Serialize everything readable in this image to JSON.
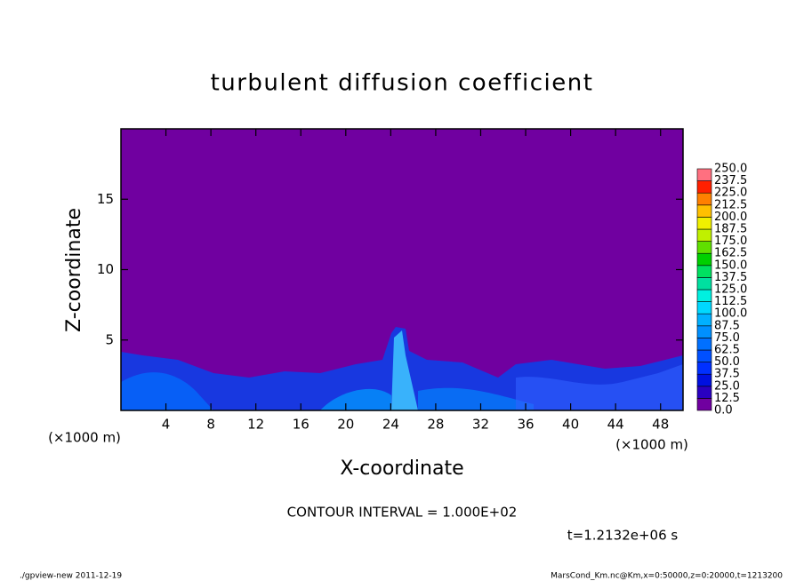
{
  "chart_data": {
    "type": "contour",
    "title": "turbulent diffusion coefficient",
    "xlabel": "X-coordinate",
    "ylabel": "Z-coordinate",
    "x_unit": "(×1000 m)",
    "y_unit": "(×1000 m)",
    "xlim": [
      0,
      50
    ],
    "ylim": [
      0,
      20
    ],
    "xticks": [
      4,
      8,
      12,
      16,
      20,
      24,
      28,
      32,
      36,
      40,
      44,
      48
    ],
    "yticks": [
      5,
      10,
      15
    ],
    "colorbar": {
      "levels": [
        {
          "value": 0,
          "label": "0.0"
        },
        12.5,
        {
          "value": 25,
          "label": "25.0"
        },
        37.5,
        {
          "value": 50,
          "label": "50.0"
        },
        62.5,
        {
          "value": 75,
          "label": "75.0"
        },
        87.5,
        {
          "value": 100,
          "label": "100.0"
        },
        112.5,
        {
          "value": 125,
          "label": "125.0"
        },
        137.5,
        {
          "value": 150,
          "label": "150.0"
        },
        162.5,
        {
          "value": 175,
          "label": "175.0"
        },
        187.5,
        {
          "value": 200,
          "label": "200.0"
        },
        212.5,
        {
          "value": 225,
          "label": "225.0"
        },
        237.5,
        {
          "value": 250,
          "label": "250.0"
        }
      ],
      "colors": [
        "#7000a0",
        "#2a00c0",
        "#0010e0",
        "#0030ff",
        "#0050ff",
        "#0070ff",
        "#0090ff",
        "#00b0ff",
        "#00d8ff",
        "#00f0e0",
        "#00e0a0",
        "#00e060",
        "#00d000",
        "#60e000",
        "#c0f000",
        "#f0f000",
        "#ffc000",
        "#ff8000",
        "#ff2000",
        "#ff7080"
      ]
    },
    "annotations": [
      "CONTOUR INTERVAL = 1.000E+02",
      "t=1.2132e+06 s"
    ],
    "footer_left": "./gpview-new   2011-12-19",
    "footer_right": "MarsCond_Km.nc@Km,x=0:50000,z=0:20000,t=1213200"
  }
}
